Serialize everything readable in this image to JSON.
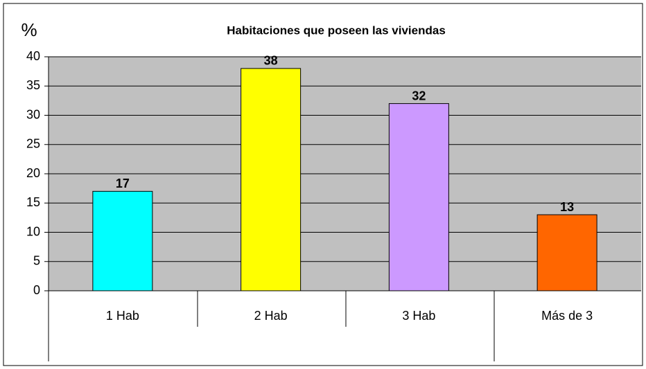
{
  "chart_data": {
    "type": "bar",
    "title": "Habitaciones que poseen las viviendas",
    "ylabel": "%",
    "categories": [
      "1 Hab",
      "2 Hab",
      "3 Hab",
      "Más de 3"
    ],
    "values": [
      17,
      38,
      32,
      13
    ],
    "colors": [
      "#00ffff",
      "#ffff00",
      "#cc99ff",
      "#ff6600"
    ],
    "ylim": [
      0,
      40
    ],
    "yticks": [
      0,
      5,
      10,
      15,
      20,
      25,
      30,
      35,
      40
    ],
    "grid": true
  }
}
